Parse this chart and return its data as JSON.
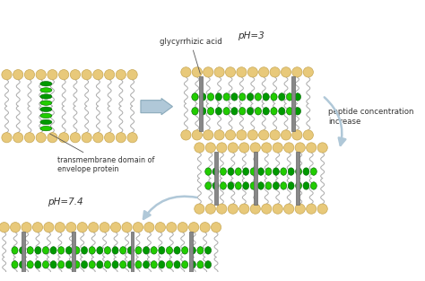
{
  "background_color": "#ffffff",
  "labels": {
    "glycyrrhizic_acid": "glycyrrhizic acid",
    "transmembrane": "transmembrane domain of\nenvelope protein",
    "pH3": "pH=3",
    "pH74": "pH=7.4",
    "peptide_conc": "peptide concentration\nincrease"
  },
  "colors": {
    "lipid_head": "#E8C97A",
    "lipid_head_outline": "#C8A855",
    "lipid_tail": "#AAAAAA",
    "helix_green": "#22CC00",
    "helix_dark": "#009900",
    "glycyrrhizic_bar": "#888888",
    "arrow_fill": "#B0C8D8",
    "arrow_edge": "#8AAABB",
    "text": "#333333",
    "annotation_line": "#555555"
  }
}
